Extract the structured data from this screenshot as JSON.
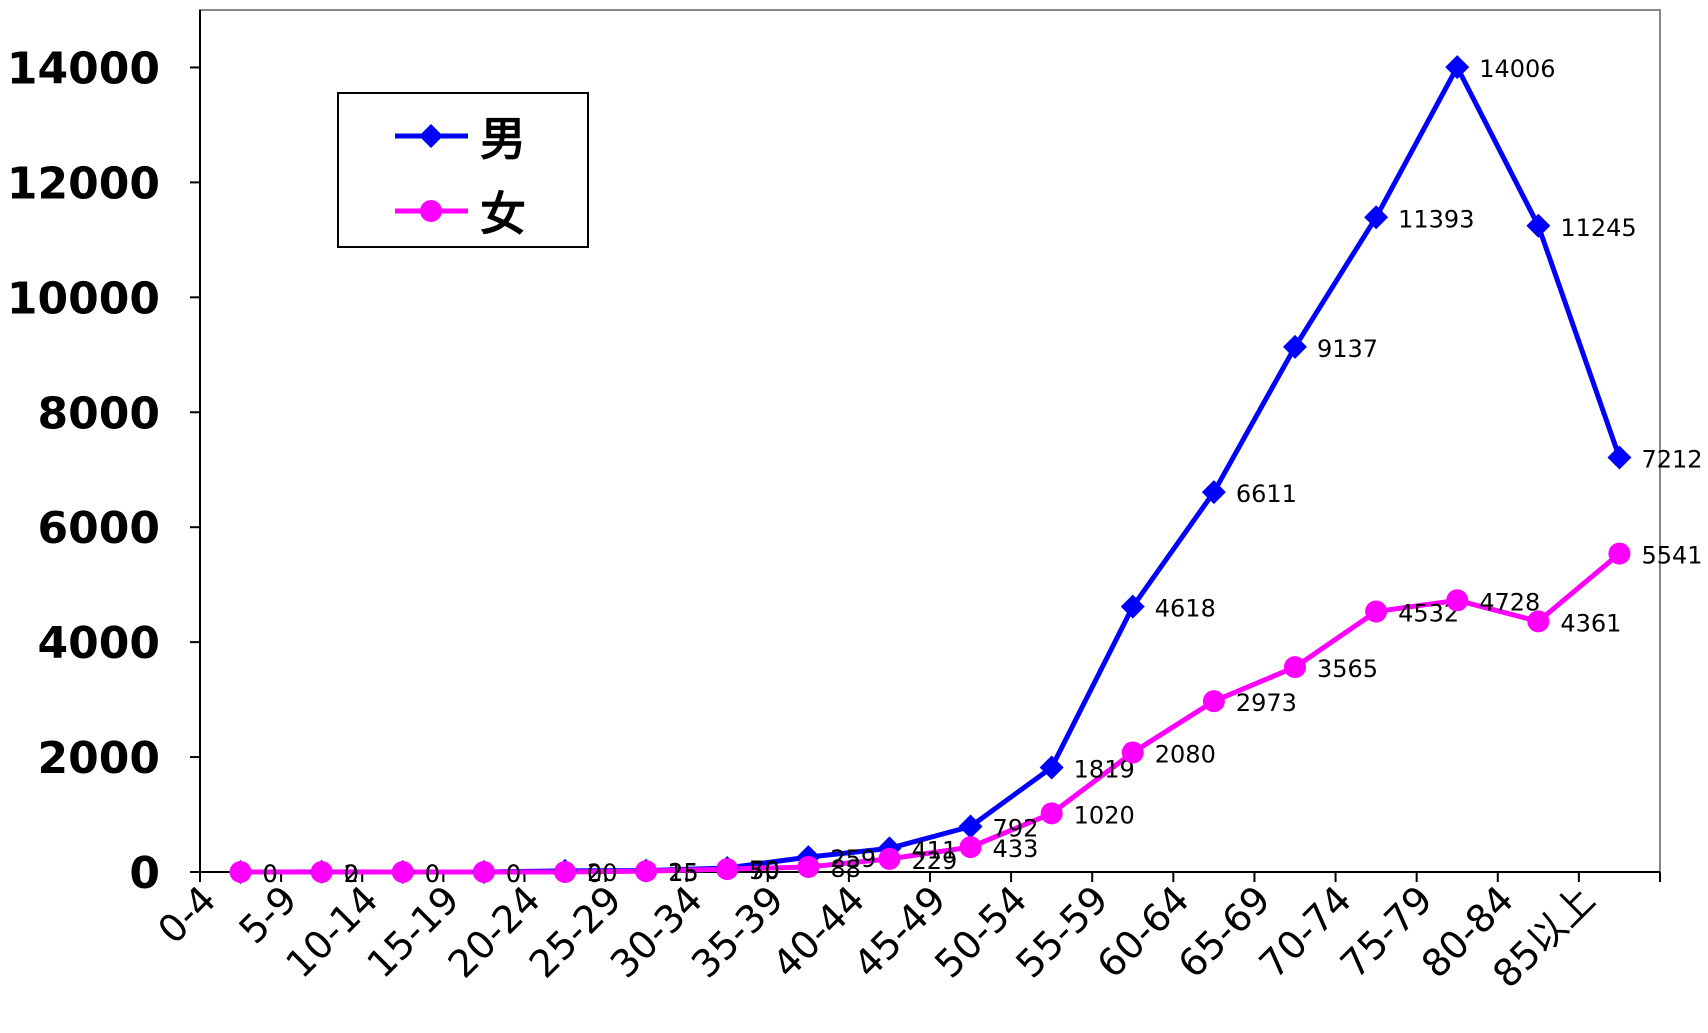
{
  "chart_data": {
    "type": "line",
    "categories": [
      "0-4",
      "5-9",
      "10-14",
      "15-19",
      "20-24",
      "25-29",
      "30-34",
      "35-39",
      "40-44",
      "45-49",
      "50-54",
      "55-59",
      "60-64",
      "65-69",
      "70-74",
      "75-79",
      "80-84",
      "85以上"
    ],
    "series": [
      {
        "name": "男",
        "values": [
          0,
          2,
          0,
          0,
          20,
          25,
          70,
          259,
          411,
          792,
          1819,
          4618,
          6611,
          9137,
          11393,
          14006,
          11245,
          7212
        ],
        "color": "#0000ff",
        "marker": "diamond"
      },
      {
        "name": "女",
        "values": [
          0,
          0,
          0,
          0,
          0,
          15,
          50,
          88,
          229,
          433,
          1020,
          2080,
          2973,
          3565,
          4532,
          4728,
          4361,
          5541
        ],
        "color": "#ff00ff",
        "marker": "circle"
      }
    ],
    "ylim": [
      0,
      15000
    ],
    "yticks": [
      "0",
      "2000",
      "4000",
      "6000",
      "8000",
      "10000",
      "12000",
      "14000"
    ],
    "title": "",
    "xlabel": "",
    "ylabel": "",
    "legend_position": "top-left",
    "grid": false
  }
}
